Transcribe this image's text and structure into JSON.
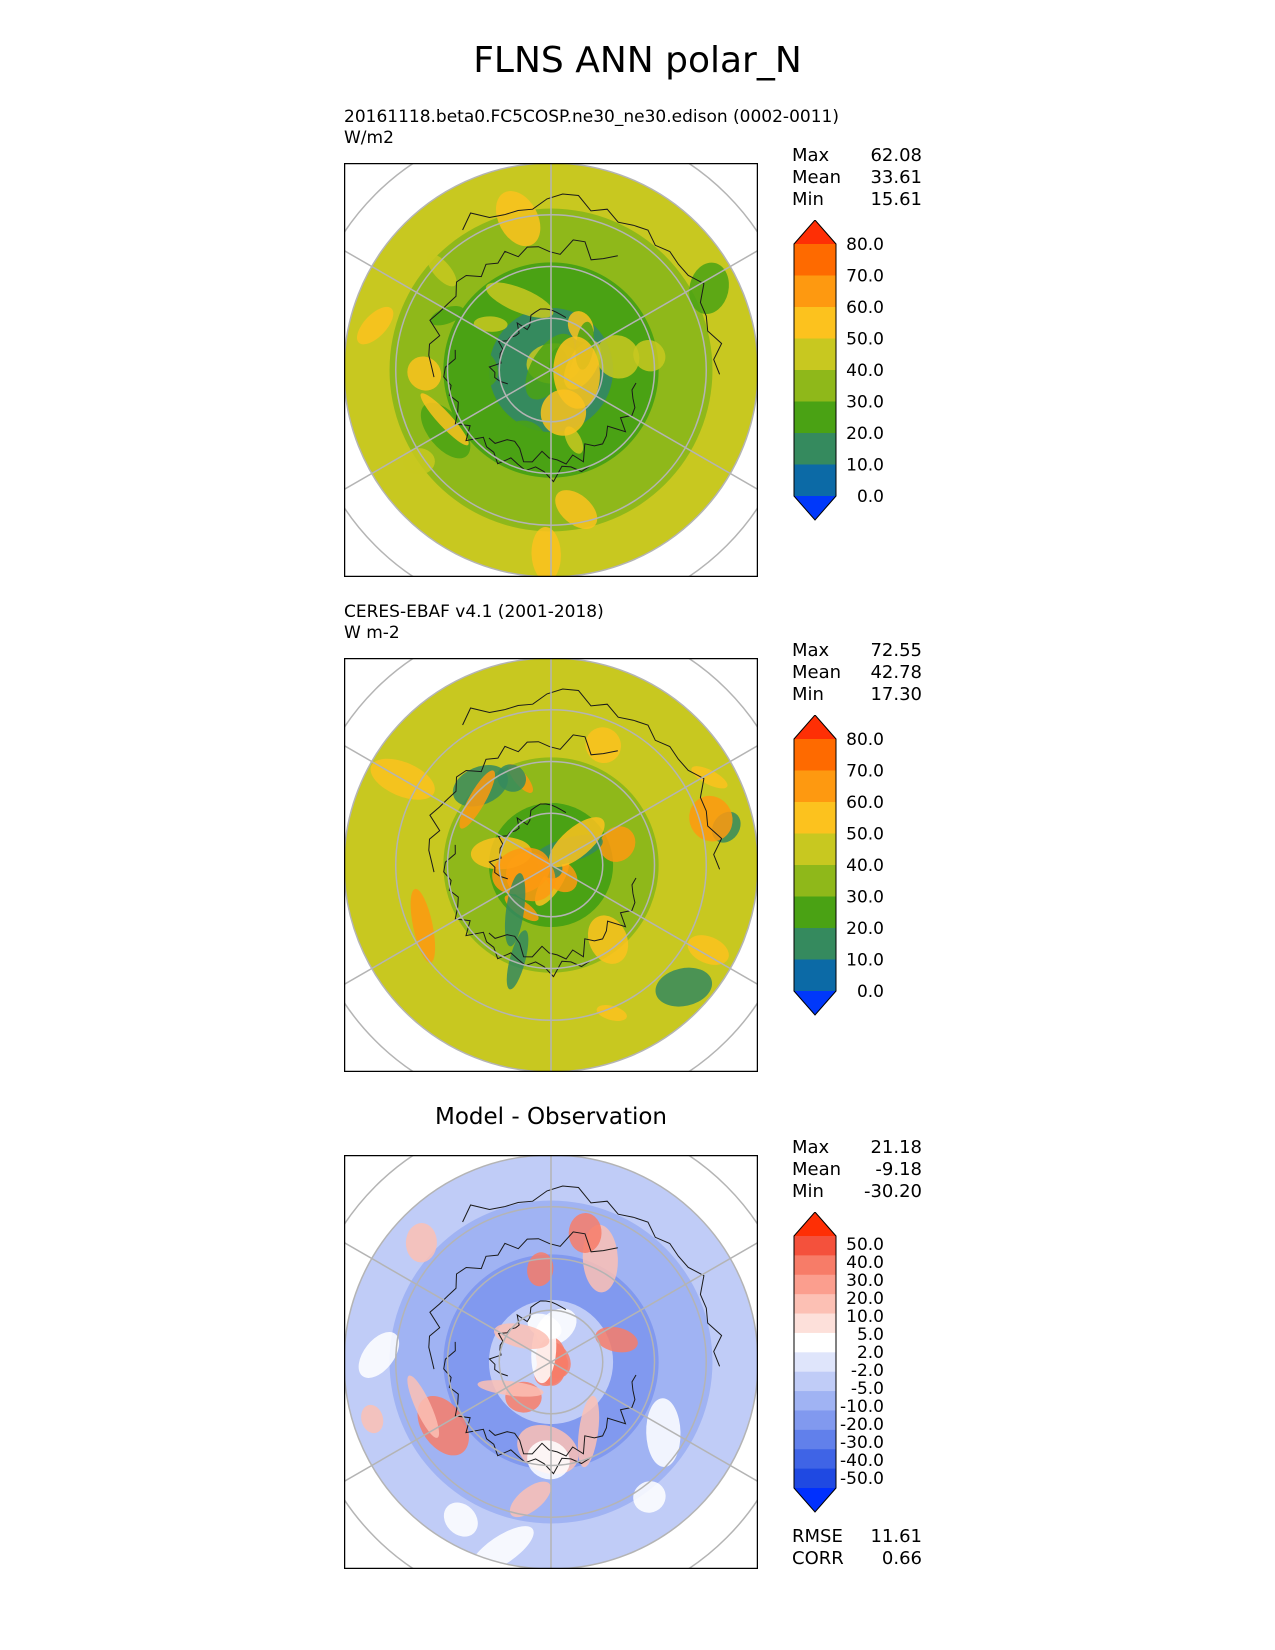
{
  "figure_title": "FLNS ANN polar_N",
  "panels": [
    {
      "title_line1": "20161118.beta0.FC5COSP.ne30_ne30.edison (0002-0011)",
      "title_line2": "W/m2",
      "stats": {
        "max_label": "Max",
        "max": "62.08",
        "mean_label": "Mean",
        "mean": "33.61",
        "min_label": "Min",
        "min": "15.61"
      },
      "colorbar": {
        "labels": [
          "80.0",
          "70.0",
          "60.0",
          "50.0",
          "40.0",
          "30.0",
          "20.0",
          "10.0",
          "0.0"
        ],
        "colors": [
          "#fe2f05",
          "#fe6a00",
          "#fe9910",
          "#fcc21e",
          "#c8c820",
          "#8fb81a",
          "#4aa214",
          "#358a5e",
          "#0c6aa6",
          "#0038fa"
        ]
      }
    },
    {
      "title_line1": "CERES-EBAF v4.1 (2001-2018)",
      "title_line2": "W m-2",
      "stats": {
        "max_label": "Max",
        "max": "72.55",
        "mean_label": "Mean",
        "mean": "42.78",
        "min_label": "Min",
        "min": "17.30"
      },
      "colorbar": {
        "labels": [
          "80.0",
          "70.0",
          "60.0",
          "50.0",
          "40.0",
          "30.0",
          "20.0",
          "10.0",
          "0.0"
        ],
        "colors": [
          "#fe2f05",
          "#fe6a00",
          "#fe9910",
          "#fcc21e",
          "#c8c820",
          "#8fb81a",
          "#4aa214",
          "#358a5e",
          "#0c6aa6",
          "#0038fa"
        ]
      }
    },
    {
      "title": "Model - Observation",
      "stats": {
        "max_label": "Max",
        "max": "21.18",
        "mean_label": "Mean",
        "mean": "-9.18",
        "min_label": "Min",
        "min": "-30.20"
      },
      "colorbar": {
        "labels": [
          "50.0",
          "40.0",
          "30.0",
          "20.0",
          "10.0",
          "5.0",
          "2.0",
          "-2.0",
          "-5.0",
          "-10.0",
          "-20.0",
          "-30.0",
          "-40.0",
          "-50.0"
        ],
        "colors": [
          "#fe2f05",
          "#f4513c",
          "#f77c68",
          "#fb9e8e",
          "#fcc0b4",
          "#fde0da",
          "#ffffff",
          "#dfe5fb",
          "#c0ccf7",
          "#a0b3f3",
          "#8199ef",
          "#6180eb",
          "#3f64e6",
          "#1f49e2",
          "#0030fe"
        ]
      },
      "metrics": {
        "rmse_label": "RMSE",
        "rmse": "11.61",
        "corr_label": "CORR",
        "corr": "0.66"
      }
    }
  ],
  "chart_data": [
    {
      "type": "heatmap",
      "projection": "north polar stereographic",
      "title": "20161118.beta0.FC5COSP.ne30_ne30.edison (0002-0011)",
      "units": "W/m2",
      "max": 62.08,
      "mean": 33.61,
      "min": 15.61,
      "colorbar_levels": [
        0,
        10,
        20,
        30,
        40,
        50,
        60,
        70,
        80
      ]
    },
    {
      "type": "heatmap",
      "projection": "north polar stereographic",
      "title": "CERES-EBAF v4.1 (2001-2018)",
      "units": "W m-2",
      "max": 72.55,
      "mean": 42.78,
      "min": 17.3,
      "colorbar_levels": [
        0,
        10,
        20,
        30,
        40,
        50,
        60,
        70,
        80
      ]
    },
    {
      "type": "heatmap",
      "projection": "north polar stereographic",
      "title": "Model - Observation",
      "max": 21.18,
      "mean": -9.18,
      "min": -30.2,
      "rmse": 11.61,
      "corr": 0.66,
      "colorbar_levels": [
        -50,
        -40,
        -30,
        -20,
        -10,
        -5,
        -2,
        2,
        5,
        10,
        20,
        30,
        40,
        50
      ]
    }
  ],
  "map_colors": {
    "p1": {
      "ring": [
        "#c8c820",
        "#8fb81a",
        "#4aa214",
        "#358a5e"
      ],
      "patches": [
        "#fcc21e",
        "#c8c820",
        "#4aa214"
      ]
    },
    "p2": {
      "ring": [
        "#c8c820",
        "#c8c820",
        "#8fb81a",
        "#4aa214"
      ],
      "patches": [
        "#fcc21e",
        "#fe9910",
        "#358a5e"
      ]
    },
    "p3": {
      "ring": [
        "#c0ccf7",
        "#a0b3f3",
        "#8199ef",
        "#c0ccf7"
      ],
      "patches": [
        "#fcc0b4",
        "#ffffff",
        "#f77c68"
      ]
    }
  }
}
